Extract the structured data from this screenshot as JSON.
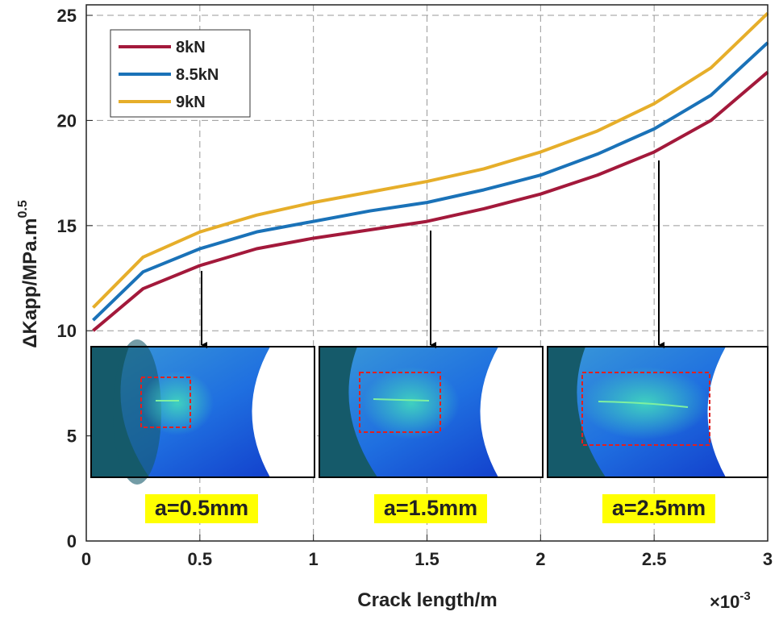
{
  "chart_data": {
    "type": "line",
    "xlabel": "Crack length/m",
    "x_multiplier": "×10",
    "x_exponent": "-3",
    "ylabel": "ΔKapp/MPa.m",
    "ylabel_superscript": "0.5",
    "x": [
      0.03,
      0.25,
      0.5,
      0.75,
      1,
      1.25,
      1.5,
      1.75,
      2,
      2.25,
      2.5,
      2.75,
      3
    ],
    "series": [
      {
        "name": "8kN",
        "color": "#a3193b",
        "values": [
          10.0,
          12.0,
          13.1,
          13.9,
          14.4,
          14.8,
          15.2,
          15.8,
          16.5,
          17.4,
          18.5,
          20.0,
          22.3
        ]
      },
      {
        "name": "8.5kN",
        "color": "#1a72b8",
        "values": [
          10.5,
          12.8,
          13.9,
          14.7,
          15.2,
          15.7,
          16.1,
          16.7,
          17.4,
          18.4,
          19.6,
          21.2,
          23.7
        ]
      },
      {
        "name": "9kN",
        "color": "#e6ae2a",
        "values": [
          11.1,
          13.5,
          14.7,
          15.5,
          16.1,
          16.6,
          17.1,
          17.7,
          18.5,
          19.5,
          20.8,
          22.5,
          25.1
        ]
      }
    ],
    "xlim": [
      0,
      3
    ],
    "ylim": [
      0,
      25.5
    ],
    "xticks": [
      0,
      0.5,
      1,
      1.5,
      2,
      2.5,
      3
    ],
    "yticks": [
      0,
      5,
      10,
      15,
      20,
      25
    ],
    "grid": true,
    "legend": "upper-left",
    "annotations": [
      "a=0.5mm",
      "a=1.5mm",
      "a=2.5mm"
    ]
  }
}
